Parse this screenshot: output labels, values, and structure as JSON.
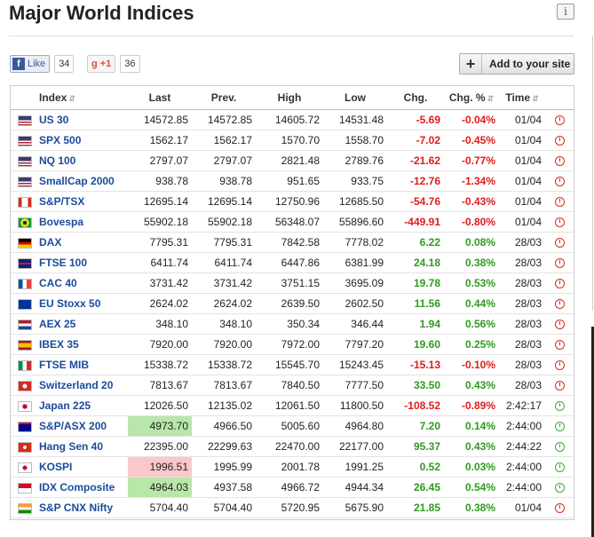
{
  "title": "Major World Indices",
  "social": {
    "fb_label": "Like",
    "fb_count": "34",
    "gplus_label": "+1",
    "gplus_count": "36"
  },
  "add_button": {
    "label": "Add to your site"
  },
  "table": {
    "headers": {
      "index": "Index",
      "last": "Last",
      "prev": "Prev.",
      "high": "High",
      "low": "Low",
      "chg": "Chg.",
      "chg_pct": "Chg. %",
      "time": "Time"
    },
    "rows": [
      {
        "flag": "us",
        "name": "US 30",
        "last": "14572.85",
        "prev": "14572.85",
        "high": "14605.72",
        "low": "14531.48",
        "chg": "-5.69",
        "pct": "-0.04%",
        "time": "01/04",
        "dir": "neg",
        "clock": "red",
        "hl": ""
      },
      {
        "flag": "us",
        "name": "SPX 500",
        "last": "1562.17",
        "prev": "1562.17",
        "high": "1570.70",
        "low": "1558.70",
        "chg": "-7.02",
        "pct": "-0.45%",
        "time": "01/04",
        "dir": "neg",
        "clock": "red",
        "hl": ""
      },
      {
        "flag": "us",
        "name": "NQ 100",
        "last": "2797.07",
        "prev": "2797.07",
        "high": "2821.48",
        "low": "2789.76",
        "chg": "-21.62",
        "pct": "-0.77%",
        "time": "01/04",
        "dir": "neg",
        "clock": "red",
        "hl": ""
      },
      {
        "flag": "us",
        "name": "SmallCap 2000",
        "last": "938.78",
        "prev": "938.78",
        "high": "951.65",
        "low": "933.75",
        "chg": "-12.76",
        "pct": "-1.34%",
        "time": "01/04",
        "dir": "neg",
        "clock": "red",
        "hl": ""
      },
      {
        "flag": "ca",
        "name": "S&P/TSX",
        "last": "12695.14",
        "prev": "12695.14",
        "high": "12750.96",
        "low": "12685.50",
        "chg": "-54.76",
        "pct": "-0.43%",
        "time": "01/04",
        "dir": "neg",
        "clock": "red",
        "hl": ""
      },
      {
        "flag": "br",
        "name": "Bovespa",
        "last": "55902.18",
        "prev": "55902.18",
        "high": "56348.07",
        "low": "55896.60",
        "chg": "-449.91",
        "pct": "-0.80%",
        "time": "01/04",
        "dir": "neg",
        "clock": "red",
        "hl": ""
      },
      {
        "flag": "de",
        "name": "DAX",
        "last": "7795.31",
        "prev": "7795.31",
        "high": "7842.58",
        "low": "7778.02",
        "chg": "6.22",
        "pct": "0.08%",
        "time": "28/03",
        "dir": "pos",
        "clock": "red",
        "hl": ""
      },
      {
        "flag": "gb",
        "name": "FTSE 100",
        "last": "6411.74",
        "prev": "6411.74",
        "high": "6447.86",
        "low": "6381.99",
        "chg": "24.18",
        "pct": "0.38%",
        "time": "28/03",
        "dir": "pos",
        "clock": "red",
        "hl": ""
      },
      {
        "flag": "fr",
        "name": "CAC 40",
        "last": "3731.42",
        "prev": "3731.42",
        "high": "3751.15",
        "low": "3695.09",
        "chg": "19.78",
        "pct": "0.53%",
        "time": "28/03",
        "dir": "pos",
        "clock": "red",
        "hl": ""
      },
      {
        "flag": "eu",
        "name": "EU Stoxx 50",
        "last": "2624.02",
        "prev": "2624.02",
        "high": "2639.50",
        "low": "2602.50",
        "chg": "11.56",
        "pct": "0.44%",
        "time": "28/03",
        "dir": "pos",
        "clock": "red",
        "hl": ""
      },
      {
        "flag": "nl",
        "name": "AEX 25",
        "last": "348.10",
        "prev": "348.10",
        "high": "350.34",
        "low": "346.44",
        "chg": "1.94",
        "pct": "0.56%",
        "time": "28/03",
        "dir": "pos",
        "clock": "red",
        "hl": ""
      },
      {
        "flag": "es",
        "name": "IBEX 35",
        "last": "7920.00",
        "prev": "7920.00",
        "high": "7972.00",
        "low": "7797.20",
        "chg": "19.60",
        "pct": "0.25%",
        "time": "28/03",
        "dir": "pos",
        "clock": "red",
        "hl": ""
      },
      {
        "flag": "it",
        "name": "FTSE MIB",
        "last": "15338.72",
        "prev": "15338.72",
        "high": "15545.70",
        "low": "15243.45",
        "chg": "-15.13",
        "pct": "-0.10%",
        "time": "28/03",
        "dir": "neg",
        "clock": "red",
        "hl": ""
      },
      {
        "flag": "ch",
        "name": "Switzerland 20",
        "last": "7813.67",
        "prev": "7813.67",
        "high": "7840.50",
        "low": "7777.50",
        "chg": "33.50",
        "pct": "0.43%",
        "time": "28/03",
        "dir": "pos",
        "clock": "red",
        "hl": ""
      },
      {
        "flag": "jp",
        "name": "Japan 225",
        "last": "12026.50",
        "prev": "12135.02",
        "high": "12061.50",
        "low": "11800.50",
        "chg": "-108.52",
        "pct": "-0.89%",
        "time": "2:42:17",
        "dir": "neg",
        "clock": "green",
        "hl": ""
      },
      {
        "flag": "au",
        "name": "S&P/ASX 200",
        "last": "4973.70",
        "prev": "4966.50",
        "high": "5005.60",
        "low": "4964.80",
        "chg": "7.20",
        "pct": "0.14%",
        "time": "2:44:00",
        "dir": "pos",
        "clock": "green",
        "hl": "green"
      },
      {
        "flag": "hk",
        "name": "Hang Sen 40",
        "last": "22395.00",
        "prev": "22299.63",
        "high": "22470.00",
        "low": "22177.00",
        "chg": "95.37",
        "pct": "0.43%",
        "time": "2:44:22",
        "dir": "pos",
        "clock": "green",
        "hl": ""
      },
      {
        "flag": "kr",
        "name": "KOSPI",
        "last": "1996.51",
        "prev": "1995.99",
        "high": "2001.78",
        "low": "1991.25",
        "chg": "0.52",
        "pct": "0.03%",
        "time": "2:44:00",
        "dir": "pos",
        "clock": "green",
        "hl": "red"
      },
      {
        "flag": "id",
        "name": "IDX Composite",
        "last": "4964.03",
        "prev": "4937.58",
        "high": "4966.72",
        "low": "4944.34",
        "chg": "26.45",
        "pct": "0.54%",
        "time": "2:44:00",
        "dir": "pos",
        "clock": "green",
        "hl": "green"
      },
      {
        "flag": "in",
        "name": "S&P CNX Nifty",
        "last": "5704.40",
        "prev": "5704.40",
        "high": "5720.95",
        "low": "5675.90",
        "chg": "21.85",
        "pct": "0.38%",
        "time": "01/04",
        "dir": "pos",
        "clock": "red",
        "hl": ""
      }
    ]
  }
}
